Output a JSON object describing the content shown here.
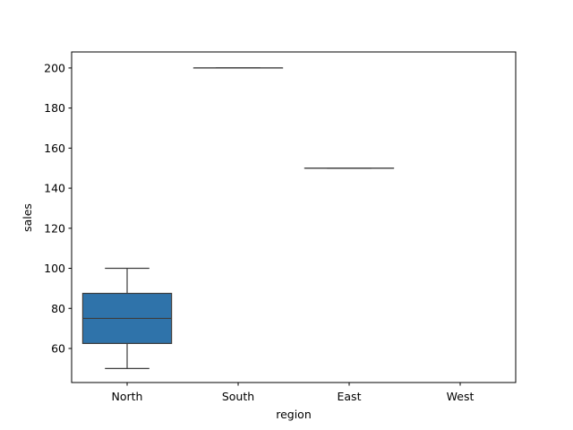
{
  "chart_data": {
    "type": "box",
    "xlabel": "region",
    "ylabel": "sales",
    "categories": [
      "North",
      "South",
      "East",
      "West"
    ],
    "ylim": [
      43,
      208
    ],
    "yticks": [
      60,
      80,
      100,
      120,
      140,
      160,
      180,
      200
    ],
    "box_color": "#2f73aa",
    "line_color": "#3d3d3d",
    "boxes": [
      {
        "category": "North",
        "min": 50,
        "q1": 62.5,
        "median": 75,
        "q3": 87.5,
        "max": 100
      },
      {
        "category": "South",
        "min": 200,
        "q1": 200,
        "median": 200,
        "q3": 200,
        "max": 200
      },
      {
        "category": "East",
        "min": 150,
        "q1": 150,
        "median": 150,
        "q3": 150,
        "max": 150
      },
      {
        "category": "West",
        "min": null,
        "q1": null,
        "median": null,
        "q3": null,
        "max": null
      }
    ]
  }
}
